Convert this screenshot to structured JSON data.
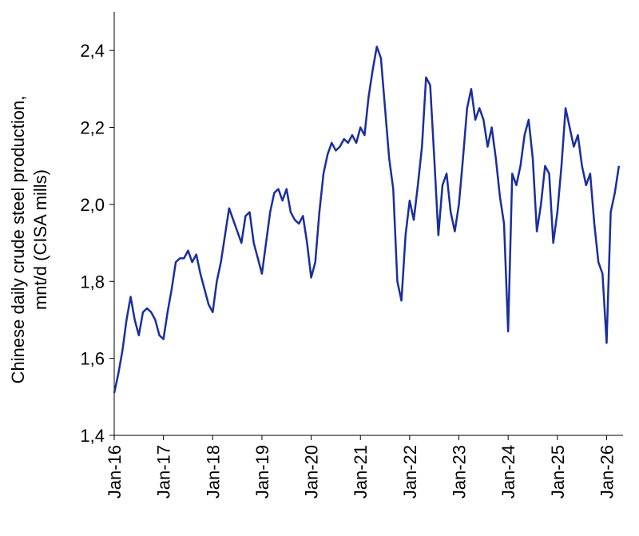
{
  "chart_data": {
    "type": "line",
    "ylabel": [
      "Chinese daily crude steel production,",
      "mnt/d (CISA mills)"
    ],
    "x": [
      "2016-01",
      "2016-02",
      "2016-03",
      "2016-04",
      "2016-05",
      "2016-06",
      "2016-07",
      "2016-08",
      "2016-09",
      "2016-10",
      "2016-11",
      "2016-12",
      "2017-01",
      "2017-02",
      "2017-03",
      "2017-04",
      "2017-05",
      "2017-06",
      "2017-07",
      "2017-08",
      "2017-09",
      "2017-10",
      "2017-11",
      "2017-12",
      "2018-01",
      "2018-02",
      "2018-03",
      "2018-04",
      "2018-05",
      "2018-06",
      "2018-07",
      "2018-08",
      "2018-09",
      "2018-10",
      "2018-11",
      "2018-12",
      "2019-01",
      "2019-02",
      "2019-03",
      "2019-04",
      "2019-05",
      "2019-06",
      "2019-07",
      "2019-08",
      "2019-09",
      "2019-10",
      "2019-11",
      "2019-12",
      "2020-01",
      "2020-02",
      "2020-03",
      "2020-04",
      "2020-05",
      "2020-06",
      "2020-07",
      "2020-08",
      "2020-09",
      "2020-10",
      "2020-11",
      "2020-12",
      "2021-01",
      "2021-02",
      "2021-03",
      "2021-04",
      "2021-05",
      "2021-06",
      "2021-07",
      "2021-08",
      "2021-09",
      "2021-10",
      "2021-11",
      "2021-12",
      "2022-01",
      "2022-02",
      "2022-03",
      "2022-04",
      "2022-05",
      "2022-06",
      "2022-07",
      "2022-08",
      "2022-09",
      "2022-10",
      "2022-11",
      "2022-12",
      "2023-01",
      "2023-02",
      "2023-03",
      "2023-04",
      "2023-05",
      "2023-06",
      "2023-07",
      "2023-08",
      "2023-09",
      "2023-10",
      "2023-11",
      "2023-12",
      "2024-01",
      "2024-02",
      "2024-03",
      "2024-04",
      "2024-05",
      "2024-06",
      "2024-07",
      "2024-08",
      "2024-09",
      "2024-10",
      "2024-11",
      "2024-12",
      "2025-01",
      "2025-02",
      "2025-03",
      "2025-04",
      "2025-05",
      "2025-06",
      "2025-07",
      "2025-08",
      "2025-09",
      "2025-10",
      "2025-11",
      "2025-12",
      "2026-01",
      "2026-02",
      "2026-03",
      "2026-04"
    ],
    "series": [
      {
        "name": "Chinese daily crude steel production",
        "color": "#1a2e9c",
        "values": [
          1.51,
          1.56,
          1.62,
          1.7,
          1.76,
          1.7,
          1.66,
          1.72,
          1.73,
          1.72,
          1.7,
          1.66,
          1.65,
          1.72,
          1.78,
          1.85,
          1.86,
          1.86,
          1.88,
          1.85,
          1.87,
          1.82,
          1.78,
          1.74,
          1.72,
          1.8,
          1.85,
          1.92,
          1.99,
          1.96,
          1.93,
          1.9,
          1.97,
          1.98,
          1.9,
          1.86,
          1.82,
          1.9,
          1.98,
          2.03,
          2.04,
          2.01,
          2.04,
          1.98,
          1.96,
          1.95,
          1.97,
          1.9,
          1.81,
          1.85,
          1.98,
          2.08,
          2.13,
          2.16,
          2.14,
          2.15,
          2.17,
          2.16,
          2.18,
          2.16,
          2.2,
          2.18,
          2.28,
          2.35,
          2.41,
          2.38,
          2.25,
          2.12,
          2.04,
          1.8,
          1.75,
          1.92,
          2.01,
          1.96,
          2.05,
          2.15,
          2.33,
          2.31,
          2.12,
          1.92,
          2.05,
          2.08,
          1.98,
          1.93,
          2.0,
          2.12,
          2.25,
          2.3,
          2.22,
          2.25,
          2.22,
          2.15,
          2.2,
          2.12,
          2.02,
          1.95,
          1.67,
          2.08,
          2.05,
          2.1,
          2.18,
          2.22,
          2.12,
          1.93,
          2.0,
          2.1,
          2.08,
          1.9,
          1.98,
          2.1,
          2.25,
          2.2,
          2.15,
          2.18,
          2.1,
          2.05,
          2.08,
          1.95,
          1.85,
          1.82,
          1.64,
          1.98,
          2.03,
          2.1
        ]
      }
    ],
    "xlim": [
      "2016-01",
      "2026-05"
    ],
    "xticks": [
      {
        "value": "2016-01",
        "label": "Jan-16"
      },
      {
        "value": "2017-01",
        "label": "Jan-17"
      },
      {
        "value": "2018-01",
        "label": "Jan-18"
      },
      {
        "value": "2019-01",
        "label": "Jan-19"
      },
      {
        "value": "2020-01",
        "label": "Jan-20"
      },
      {
        "value": "2021-01",
        "label": "Jan-21"
      },
      {
        "value": "2022-01",
        "label": "Jan-22"
      },
      {
        "value": "2023-01",
        "label": "Jan-23"
      },
      {
        "value": "2024-01",
        "label": "Jan-24"
      },
      {
        "value": "2025-01",
        "label": "Jan-25"
      },
      {
        "value": "2026-01",
        "label": "Jan-26"
      }
    ],
    "ylim": [
      1.4,
      2.5
    ],
    "yticks": [
      {
        "value": 1.4,
        "label": "1,4"
      },
      {
        "value": 1.6,
        "label": "1,6"
      },
      {
        "value": 1.8,
        "label": "1,8"
      },
      {
        "value": 2.0,
        "label": "2,0"
      },
      {
        "value": 2.2,
        "label": "2,2"
      },
      {
        "value": 2.4,
        "label": "2,4"
      }
    ],
    "grid": false
  }
}
